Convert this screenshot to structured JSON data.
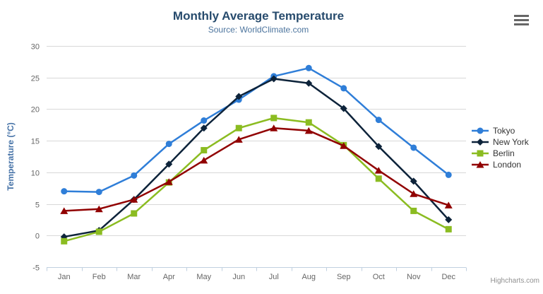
{
  "header": {
    "title": "Monthly Average Temperature",
    "subtitle": "Source: WorldClimate.com"
  },
  "credits": "Highcharts.com",
  "icons": {
    "context_menu": "hamburger"
  },
  "colors": {
    "title": "#274b6d",
    "subtitle": "#4d759e",
    "axis_labels": "#666666",
    "y_axis_title": "#4572a7",
    "gridline": "#d8d8d8",
    "axis_line": "#c0d0e0",
    "legend_text": "#333333",
    "credits_text": "#909090"
  },
  "chart_data": {
    "type": "line",
    "title": "Monthly Average Temperature",
    "subtitle": "Source: WorldClimate.com",
    "categories": [
      "Jan",
      "Feb",
      "Mar",
      "Apr",
      "May",
      "Jun",
      "Jul",
      "Aug",
      "Sep",
      "Oct",
      "Nov",
      "Dec"
    ],
    "series": [
      {
        "name": "Tokyo",
        "color": "#2f7ed8",
        "marker": "circle",
        "values": [
          7.0,
          6.9,
          9.5,
          14.5,
          18.2,
          21.5,
          25.2,
          26.5,
          23.3,
          18.3,
          13.9,
          9.6
        ]
      },
      {
        "name": "New York",
        "color": "#0d233a",
        "marker": "diamond",
        "values": [
          -0.2,
          0.8,
          5.7,
          11.3,
          17.0,
          22.0,
          24.8,
          24.1,
          20.1,
          14.1,
          8.6,
          2.5
        ]
      },
      {
        "name": "Berlin",
        "color": "#8bbc21",
        "marker": "square",
        "values": [
          -0.9,
          0.6,
          3.5,
          8.4,
          13.5,
          17.0,
          18.6,
          17.9,
          14.3,
          9.0,
          3.9,
          1.0
        ]
      },
      {
        "name": "London",
        "color": "#910000",
        "marker": "triangle",
        "values": [
          3.9,
          4.2,
          5.7,
          8.5,
          11.9,
          15.2,
          17.0,
          16.6,
          14.2,
          10.3,
          6.6,
          4.8
        ]
      }
    ],
    "xlabel": "",
    "ylabel": "Temperature (°C)",
    "ylim": [
      -5,
      30
    ],
    "yticks": [
      -5,
      0,
      5,
      10,
      15,
      20,
      25,
      30
    ],
    "grid": true,
    "legend_position": "right"
  }
}
